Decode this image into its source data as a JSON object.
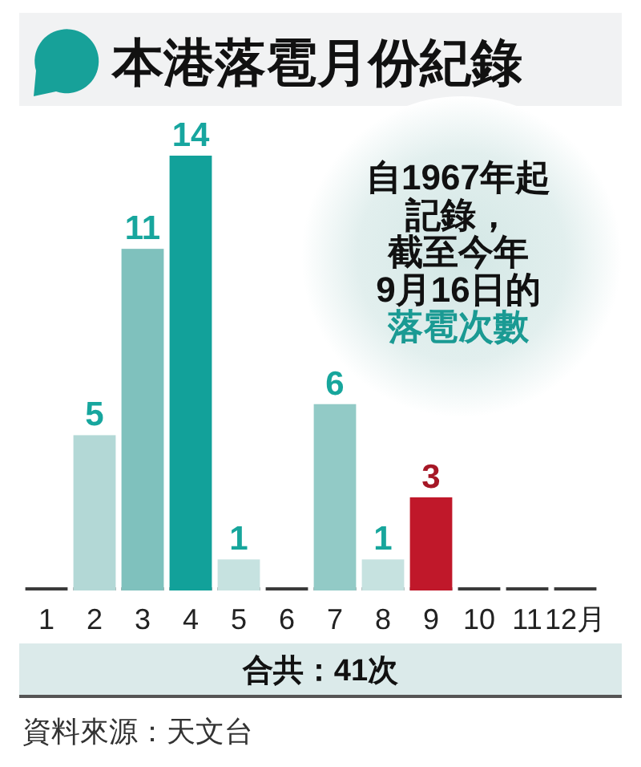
{
  "chart_data": {
    "type": "bar",
    "title": "本港落雹月份紀錄",
    "categories": [
      "1",
      "2",
      "3",
      "4",
      "5",
      "6",
      "7",
      "8",
      "9",
      "10",
      "11",
      "12月"
    ],
    "values": [
      0,
      5,
      11,
      14,
      1,
      0,
      6,
      1,
      3,
      0,
      0,
      0
    ],
    "colors": [
      "#b3d8d6",
      "#b3d8d6",
      "#7fc1bd",
      "#12a19a",
      "#c6e2e0",
      "#b3d8d6",
      "#92cac6",
      "#c6e2e0",
      "#c0182a",
      "#b3d8d6",
      "#b3d8d6",
      "#b3d8d6"
    ],
    "value_labels": [
      null,
      "5",
      "11",
      "14",
      "1",
      null,
      "6",
      "1",
      "3",
      null,
      null,
      null
    ],
    "annotations": [
      "自1967年起",
      "記錄，",
      "截至今年",
      "9月16日的",
      "落雹次數",
      "合共：41次",
      "資料來源：天文台"
    ]
  }
}
